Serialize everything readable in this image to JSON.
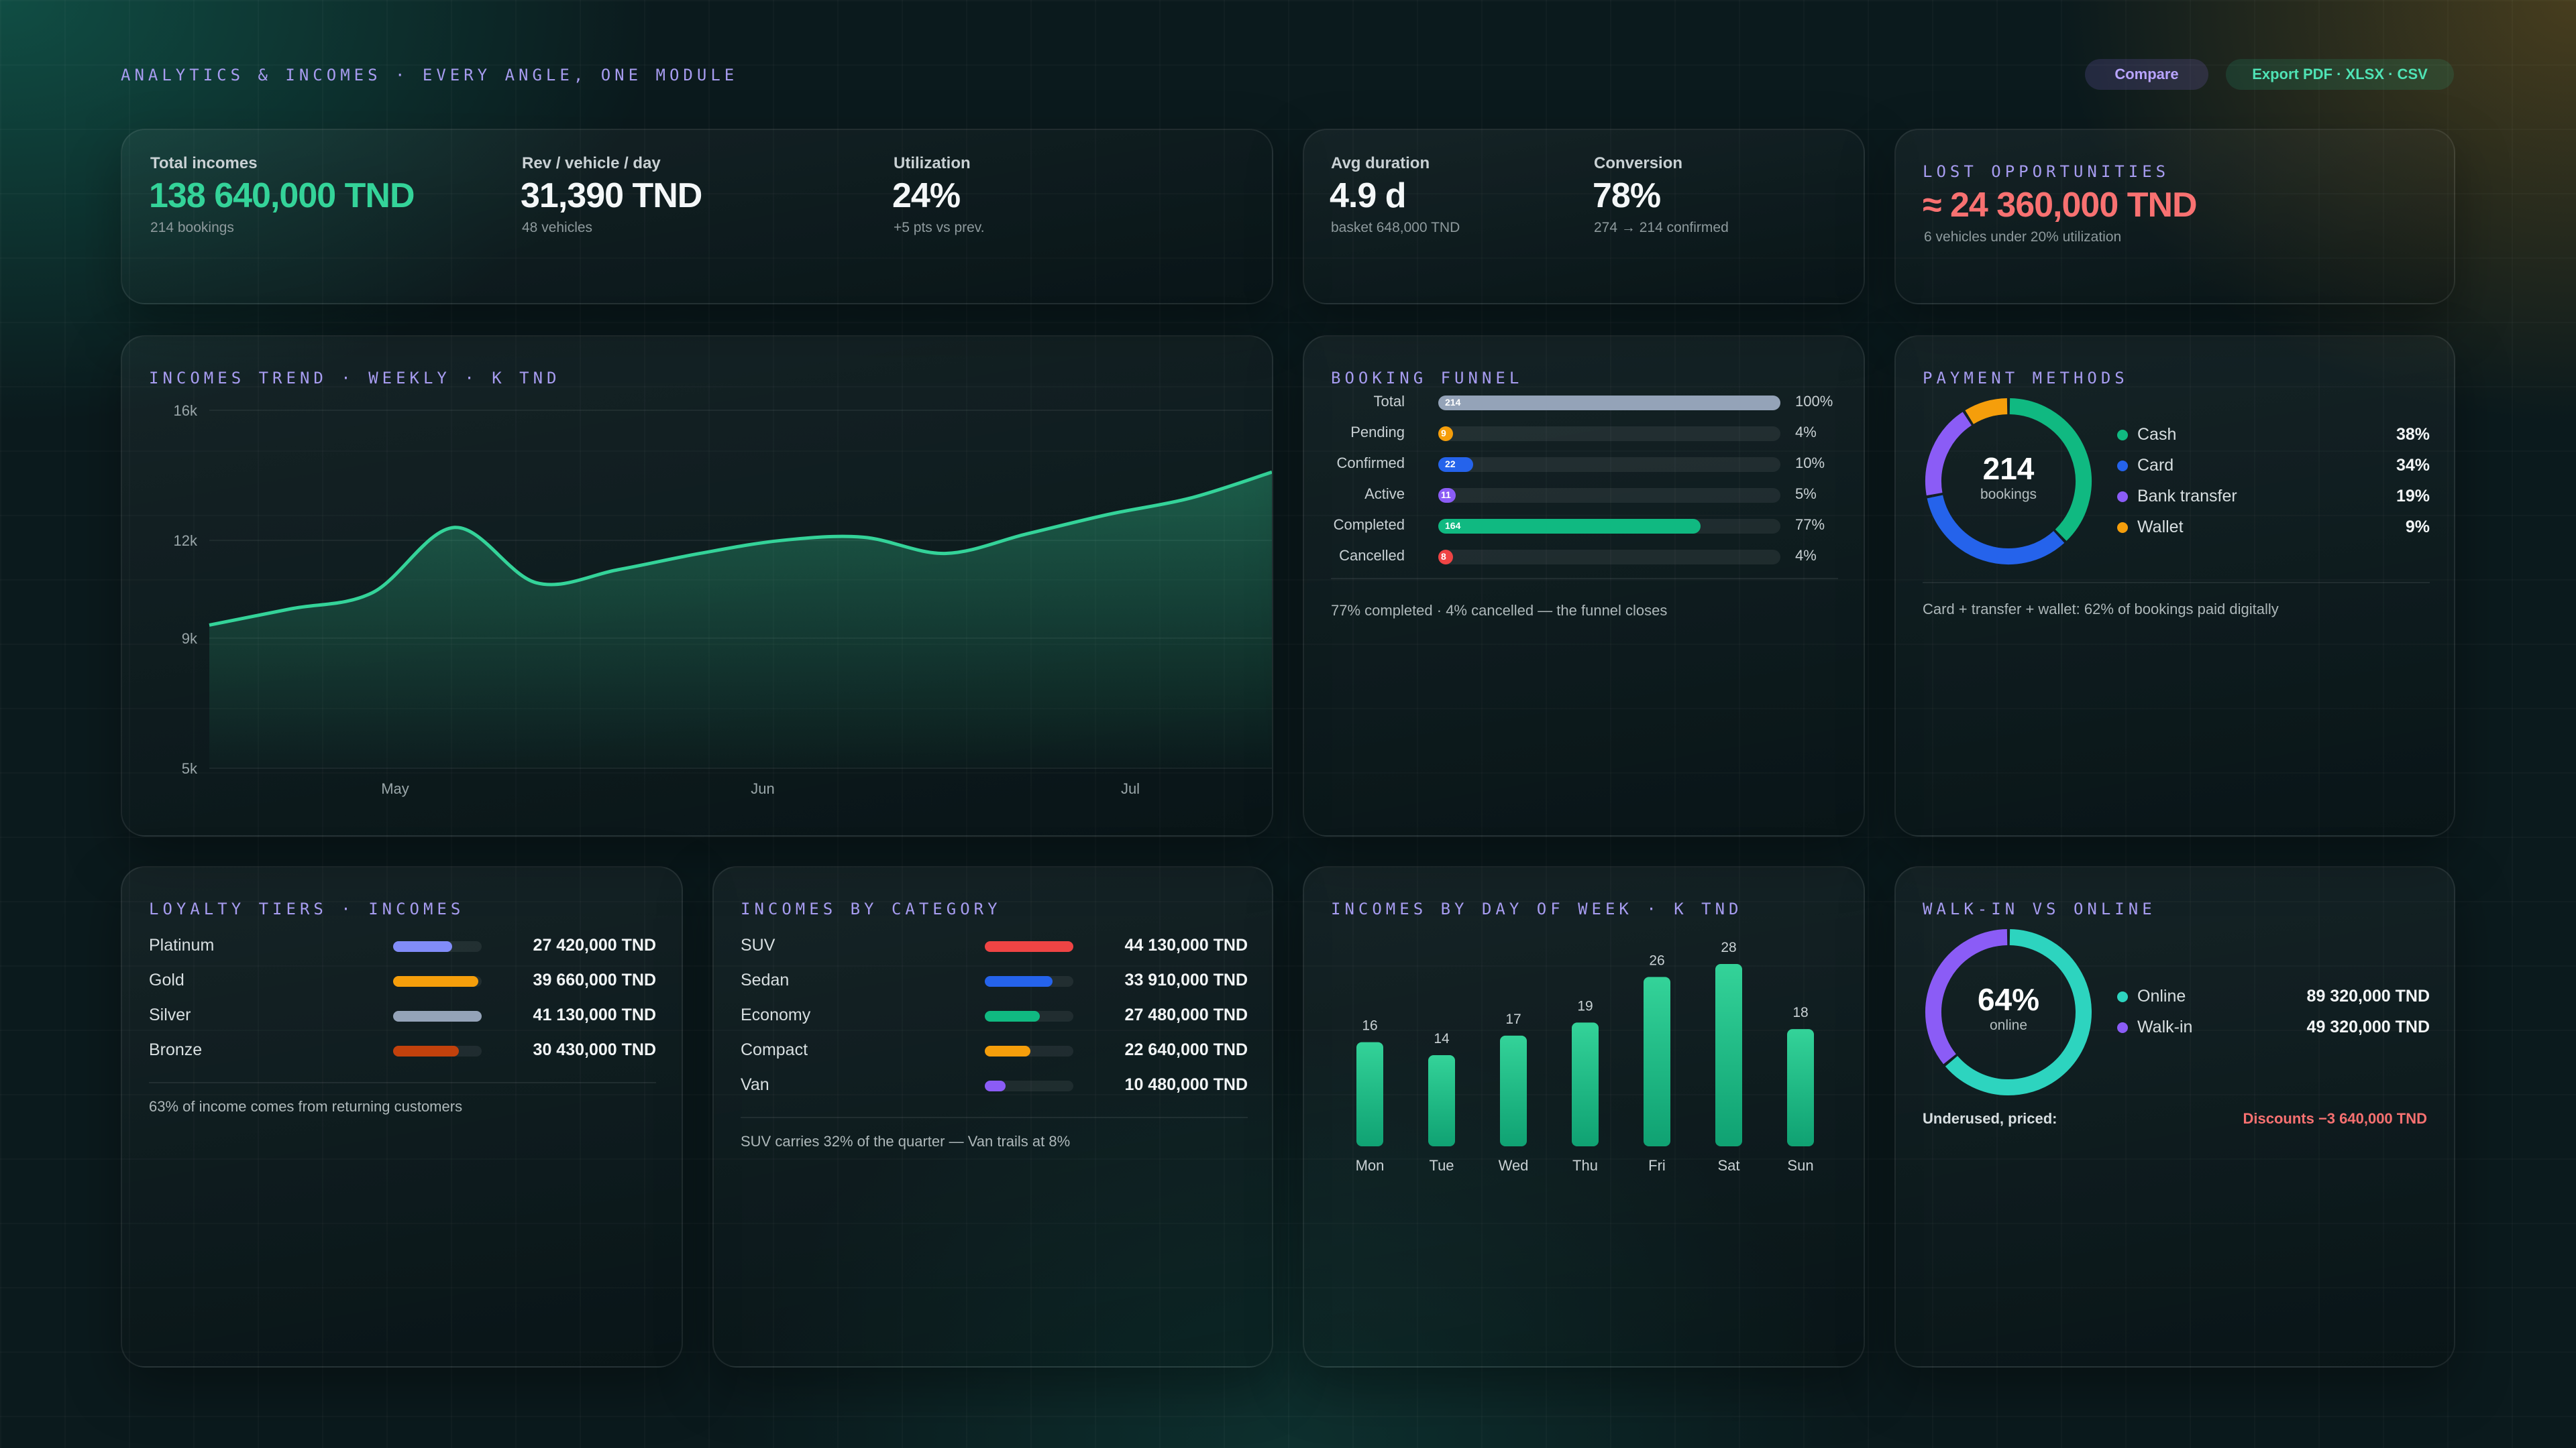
{
  "header": {
    "title": "ANALYTICS & INCOMES · EVERY ANGLE, ONE MODULE",
    "compare_label": "Compare",
    "export_label": "Export PDF · XLSX · CSV"
  },
  "colors": {
    "accent_green": "#34d399",
    "accent_purple": "#a79cf0",
    "negative_red": "#f87171"
  },
  "kpis": {
    "total_incomes": {
      "label": "Total incomes",
      "value": "138 640,000 TND",
      "sub": "214 bookings"
    },
    "rev_vehicle_day": {
      "label": "Rev / vehicle / day",
      "value": "31,390 TND",
      "sub": "48 vehicles"
    },
    "utilization": {
      "label": "Utilization",
      "value": "24%",
      "sub": "+5 pts vs prev."
    },
    "avg_duration": {
      "label": "Avg duration",
      "value": "4.9 d",
      "sub": "basket 648,000 TND"
    },
    "conversion": {
      "label": "Conversion",
      "value": "78%",
      "sub": "274 → 214 confirmed"
    },
    "lost_opportunities": {
      "title": "LOST OPPORTUNITIES",
      "value": "≈ 24 360,000 TND",
      "sub": "6 vehicles under 20% utilization"
    }
  },
  "trend": {
    "title": "INCOMES TREND · WEEKLY · K TND"
  },
  "funnel": {
    "title": "BOOKING FUNNEL",
    "note": "77% completed · 4% cancelled — the funnel closes"
  },
  "payments": {
    "title": "PAYMENT METHODS",
    "center_value": "214",
    "center_label": "bookings",
    "items": [
      {
        "label": "Cash",
        "value": "38%"
      },
      {
        "label": "Card",
        "value": "34%"
      },
      {
        "label": "Bank transfer",
        "value": "19%"
      },
      {
        "label": "Wallet",
        "value": "9%"
      }
    ],
    "note": "Card + transfer + wallet: 62% of bookings paid digitally"
  },
  "loyalty": {
    "title": "LOYALTY TIERS · INCOMES",
    "items": [
      {
        "label": "Platinum",
        "value": "27 420,000 TND"
      },
      {
        "label": "Gold",
        "value": "39 660,000 TND"
      },
      {
        "label": "Silver",
        "value": "41 130,000 TND"
      },
      {
        "label": "Bronze",
        "value": "30 430,000 TND"
      }
    ],
    "note": "63% of income comes from returning customers"
  },
  "category": {
    "title": "INCOMES BY CATEGORY",
    "items": [
      {
        "label": "SUV",
        "value": "44 130,000 TND"
      },
      {
        "label": "Sedan",
        "value": "33 910,000 TND"
      },
      {
        "label": "Economy",
        "value": "27 480,000 TND"
      },
      {
        "label": "Compact",
        "value": "22 640,000 TND"
      },
      {
        "label": "Van",
        "value": "10 480,000 TND"
      }
    ],
    "note": "SUV carries 32% of the quarter — Van trails at 8%"
  },
  "dow": {
    "title": "INCOMES BY DAY OF WEEK · K TND"
  },
  "walkin": {
    "title": "WALK-IN VS ONLINE",
    "center_value": "64%",
    "center_label": "online",
    "items": [
      {
        "label": "Online",
        "value": "89 320,000 TND"
      },
      {
        "label": "Walk-in",
        "value": "49 320,000 TND"
      }
    ],
    "footer_left": "Underused, priced:",
    "footer_right": "Discounts −3 640,000 TND"
  },
  "chart_data": [
    {
      "type": "area",
      "title": "INCOMES TREND · WEEKLY · K TND",
      "y_ticks": [
        "16k",
        "12k",
        "9k",
        "5k"
      ],
      "x_ticks": [
        "May",
        "Jun",
        "Jul"
      ],
      "ylim": [
        5,
        16
      ],
      "grid": true,
      "x": [
        0,
        1,
        2,
        3,
        4,
        5,
        6,
        7,
        8,
        9,
        10,
        11,
        12,
        13
      ],
      "series": [
        {
          "values": [
            9.4,
            9.9,
            10.4,
            12.4,
            10.7,
            11.1,
            11.6,
            12.0,
            12.1,
            11.6,
            12.2,
            12.8,
            13.3,
            14.1
          ],
          "color": "#34d399"
        }
      ]
    },
    {
      "type": "bar",
      "title": "BOOKING FUNNEL",
      "categories": [
        "Total",
        "Pending",
        "Confirmed",
        "Active",
        "Completed",
        "Cancelled"
      ],
      "values": [
        214,
        9,
        22,
        11,
        164,
        8
      ],
      "percent_labels": [
        "100%",
        "4%",
        "10%",
        "5%",
        "77%",
        "4%"
      ],
      "colors": [
        "#94a3b8",
        "#f59e0b",
        "#2563eb",
        "#8b5cf6",
        "#10b981",
        "#ef4444"
      ]
    },
    {
      "type": "pie",
      "title": "PAYMENT METHODS",
      "categories": [
        "Cash",
        "Card",
        "Bank transfer",
        "Wallet"
      ],
      "values": [
        38,
        34,
        19,
        9
      ],
      "colors": [
        "#10b981",
        "#2563eb",
        "#8b5cf6",
        "#f59e0b"
      ]
    },
    {
      "type": "bar",
      "title": "LOYALTY TIERS · INCOMES",
      "categories": [
        "Platinum",
        "Gold",
        "Silver",
        "Bronze"
      ],
      "values": [
        27420,
        39660,
        41130,
        30430
      ],
      "colors": [
        "#818cf8",
        "#f59e0b",
        "#94a3b8",
        "#c2410c"
      ]
    },
    {
      "type": "bar",
      "title": "INCOMES BY CATEGORY",
      "categories": [
        "SUV",
        "Sedan",
        "Economy",
        "Compact",
        "Van"
      ],
      "values": [
        44130,
        33910,
        27480,
        22640,
        10480
      ],
      "colors": [
        "#ef4444",
        "#2563eb",
        "#10b981",
        "#f59e0b",
        "#8b5cf6"
      ]
    },
    {
      "type": "bar",
      "title": "INCOMES BY DAY OF WEEK · K TND",
      "categories": [
        "Mon",
        "Tue",
        "Wed",
        "Thu",
        "Fri",
        "Sat",
        "Sun"
      ],
      "values": [
        16,
        14,
        17,
        19,
        26,
        28,
        18
      ],
      "ylim": [
        0,
        28
      ],
      "color": "#34d399"
    },
    {
      "type": "pie",
      "title": "WALK-IN VS ONLINE",
      "categories": [
        "Online",
        "Walk-in"
      ],
      "values": [
        64,
        36
      ],
      "colors": [
        "#2dd4bf",
        "#8b5cf6"
      ]
    }
  ]
}
